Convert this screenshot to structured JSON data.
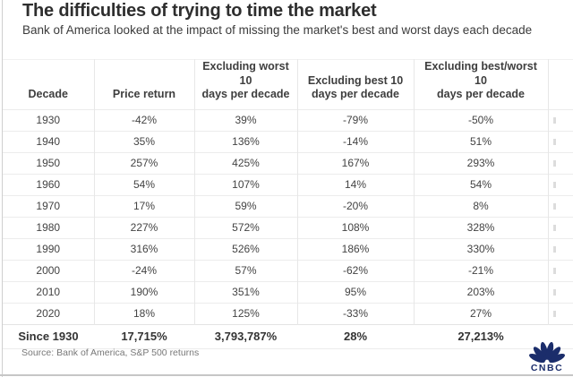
{
  "title": "The difficulties of trying to time the market",
  "subtitle": "Bank of America looked at the impact of missing the market's best and worst days each decade",
  "source": "Source: Bank of America, S&P 500 returns",
  "logo": {
    "text": "CNBC",
    "color": "#1b2d6b"
  },
  "colors": {
    "title_text": "#2e2e2e",
    "body_text": "#434343",
    "border": "#e7e7e7",
    "source_text": "#787878",
    "logo_navy": "#1b2d6b"
  },
  "chart_data": {
    "type": "table",
    "title": "The difficulties of trying to time the market",
    "subtitle": "Bank of America looked at the impact of missing the market's best and worst days each decade",
    "columns": [
      "Decade",
      "Price return",
      "Excluding worst 10\ndays per decade",
      "Excluding best 10\ndays per decade",
      "Excluding best/worst 10\ndays per decade"
    ],
    "rows": [
      [
        "1930",
        "-42%",
        "39%",
        "-79%",
        "-50%"
      ],
      [
        "1940",
        "35%",
        "136%",
        "-14%",
        "51%"
      ],
      [
        "1950",
        "257%",
        "425%",
        "167%",
        "293%"
      ],
      [
        "1960",
        "54%",
        "107%",
        "14%",
        "54%"
      ],
      [
        "1970",
        "17%",
        "59%",
        "-20%",
        "8%"
      ],
      [
        "1980",
        "227%",
        "572%",
        "108%",
        "328%"
      ],
      [
        "1990",
        "316%",
        "526%",
        "186%",
        "330%"
      ],
      [
        "2000",
        "-24%",
        "57%",
        "-62%",
        "-21%"
      ],
      [
        "2010",
        "190%",
        "351%",
        "95%",
        "203%"
      ],
      [
        "2020",
        "18%",
        "125%",
        "-33%",
        "27%"
      ]
    ],
    "footer": [
      "Since 1930",
      "17,715%",
      "3,793,787%",
      "28%",
      "27,213%"
    ]
  }
}
